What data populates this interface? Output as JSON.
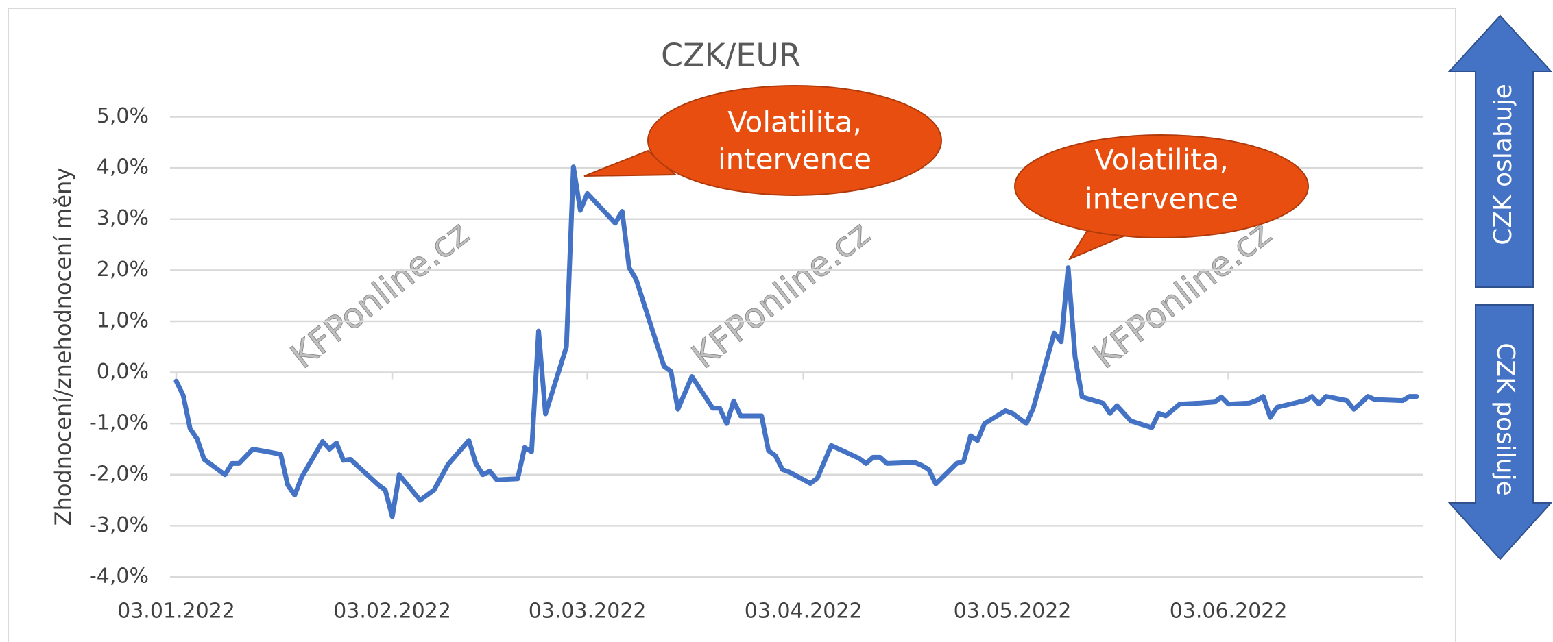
{
  "chart_data": {
    "type": "line",
    "title": "CZK/EUR",
    "y_label": "Zhodnocení/znehodnocení měny",
    "x": [
      "2022-01-03",
      "2022-01-04",
      "2022-01-05",
      "2022-01-06",
      "2022-01-07",
      "2022-01-10",
      "2022-01-11",
      "2022-01-12",
      "2022-01-14",
      "2022-01-18",
      "2022-01-19",
      "2022-01-20",
      "2022-01-21",
      "2022-01-24",
      "2022-01-25",
      "2022-01-26",
      "2022-01-27",
      "2022-01-28",
      "2022-02-01",
      "2022-02-02",
      "2022-02-03",
      "2022-02-04",
      "2022-02-07",
      "2022-02-09",
      "2022-02-11",
      "2022-02-14",
      "2022-02-15",
      "2022-02-16",
      "2022-02-17",
      "2022-02-18",
      "2022-02-21",
      "2022-02-22",
      "2022-02-23",
      "2022-02-24",
      "2022-02-25",
      "2022-02-28",
      "2022-03-01",
      "2022-03-02",
      "2022-03-03",
      "2022-03-07",
      "2022-03-08",
      "2022-03-09",
      "2022-03-10",
      "2022-03-14",
      "2022-03-15",
      "2022-03-16",
      "2022-03-18",
      "2022-03-21",
      "2022-03-22",
      "2022-03-23",
      "2022-03-24",
      "2022-03-25",
      "2022-03-28",
      "2022-03-29",
      "2022-03-30",
      "2022-03-31",
      "2022-04-01",
      "2022-04-04",
      "2022-04-05",
      "2022-04-07",
      "2022-04-11",
      "2022-04-12",
      "2022-04-13",
      "2022-04-14",
      "2022-04-15",
      "2022-04-19",
      "2022-04-20",
      "2022-04-21",
      "2022-04-22",
      "2022-04-25",
      "2022-04-26",
      "2022-04-27",
      "2022-04-28",
      "2022-04-29",
      "2022-05-02",
      "2022-05-03",
      "2022-05-04",
      "2022-05-05",
      "2022-05-06",
      "2022-05-09",
      "2022-05-10",
      "2022-05-11",
      "2022-05-12",
      "2022-05-13",
      "2022-05-16",
      "2022-05-17",
      "2022-05-18",
      "2022-05-20",
      "2022-05-23",
      "2022-05-24",
      "2022-05-25",
      "2022-05-27",
      "2022-05-30",
      "2022-06-01",
      "2022-06-02",
      "2022-06-03",
      "2022-06-06",
      "2022-06-07",
      "2022-06-08",
      "2022-06-09",
      "2022-06-10",
      "2022-06-14",
      "2022-06-15",
      "2022-06-16",
      "2022-06-17",
      "2022-06-20",
      "2022-06-21",
      "2022-06-22",
      "2022-06-23",
      "2022-06-24",
      "2022-06-28",
      "2022-06-29",
      "2022-06-30"
    ],
    "series": [
      {
        "color": "#4472c4",
        "values": [
          -0.17,
          -0.45,
          -1.1,
          -1.3,
          -1.7,
          -2.0,
          -1.78,
          -1.78,
          -1.5,
          -1.6,
          -2.2,
          -2.4,
          -2.05,
          -1.35,
          -1.5,
          -1.38,
          -1.72,
          -1.7,
          -2.2,
          -2.3,
          -2.82,
          -2.0,
          -2.5,
          -2.3,
          -1.8,
          -1.33,
          -1.78,
          -2.0,
          -1.93,
          -2.1,
          -2.08,
          -1.47,
          -1.55,
          0.81,
          -0.81,
          0.5,
          4.02,
          3.17,
          3.5,
          2.92,
          3.15,
          2.05,
          1.82,
          0.12,
          0.02,
          -0.72,
          -0.08,
          -0.7,
          -0.7,
          -1.0,
          -0.56,
          -0.85,
          -0.85,
          -1.53,
          -1.63,
          -1.9,
          -1.95,
          -2.17,
          -2.07,
          -1.43,
          -1.68,
          -1.78,
          -1.66,
          -1.66,
          -1.78,
          -1.76,
          -1.82,
          -1.9,
          -2.18,
          -1.78,
          -1.74,
          -1.24,
          -1.33,
          -1.0,
          -0.75,
          -0.8,
          -0.9,
          -1.0,
          -0.7,
          0.77,
          0.6,
          2.05,
          0.3,
          -0.48,
          -0.6,
          -0.8,
          -0.65,
          -0.95,
          -1.08,
          -0.8,
          -0.85,
          -0.62,
          -0.6,
          -0.58,
          -0.48,
          -0.62,
          -0.6,
          -0.55,
          -0.47,
          -0.88,
          -0.68,
          -0.55,
          -0.47,
          -0.62,
          -0.47,
          -0.55,
          -0.72,
          -0.6,
          -0.47,
          -0.53,
          -0.55,
          -0.47,
          -0.47
        ]
      }
    ],
    "xlim": [
      "2022-01-03",
      "2022-06-30"
    ],
    "xticks": [
      {
        "value": "2022-01-03",
        "label": "03.01.2022"
      },
      {
        "value": "2022-02-03",
        "label": "03.02.2022"
      },
      {
        "value": "2022-03-03",
        "label": "03.03.2022"
      },
      {
        "value": "2022-04-03",
        "label": "03.04.2022"
      },
      {
        "value": "2022-05-03",
        "label": "03.05.2022"
      },
      {
        "value": "2022-06-03",
        "label": "03.06.2022"
      }
    ],
    "ylim": [
      -4,
      5
    ],
    "yticks": [
      {
        "value": -4,
        "label": "-4,0%"
      },
      {
        "value": -3,
        "label": "-3,0%"
      },
      {
        "value": -2,
        "label": "-2,0%"
      },
      {
        "value": -1,
        "label": "-1,0%"
      },
      {
        "value": 0,
        "label": "0,0%"
      },
      {
        "value": 1,
        "label": "1,0%"
      },
      {
        "value": 2,
        "label": "2,0%"
      },
      {
        "value": 3,
        "label": "3,0%"
      },
      {
        "value": 4,
        "label": "4,0%"
      },
      {
        "value": 5,
        "label": "5,0%"
      }
    ],
    "grid": true,
    "annotations": [
      {
        "lines": [
          "Volatilita,",
          "intervence"
        ]
      },
      {
        "lines": [
          "Volatilita,",
          "intervence"
        ]
      }
    ],
    "watermark": "KFPonline.cz",
    "arrow_up_label": "CZK oslabuje",
    "arrow_down_label": "CZK posiluje"
  }
}
